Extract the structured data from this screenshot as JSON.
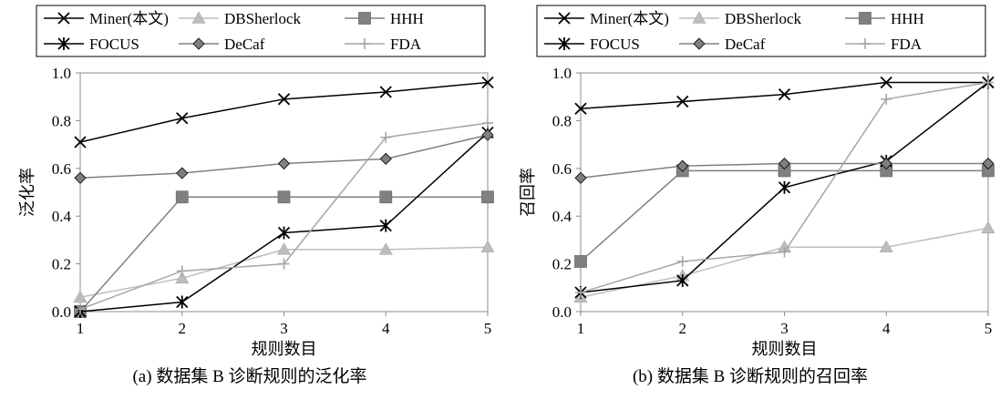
{
  "chart_data": [
    {
      "type": "line",
      "caption": "(a)  数据集 B 诊断规则的泛化率",
      "xlabel": "规则数目",
      "ylabel": "泛化率",
      "x": [
        1,
        2,
        3,
        4,
        5
      ],
      "xticks": [
        "1",
        "2",
        "3",
        "4",
        "5"
      ],
      "ylim": [
        0,
        1
      ],
      "yticks": [
        "0.0",
        "0.2",
        "0.4",
        "0.6",
        "0.8",
        "1.0"
      ],
      "legend": "top",
      "grid": false,
      "series": [
        {
          "name": "Miner(本文)",
          "marker": "x",
          "color": "#000000",
          "values": [
            0.71,
            0.81,
            0.89,
            0.92,
            0.96
          ]
        },
        {
          "name": "DBSherlock",
          "marker": "triangle",
          "color": "#bdbdbd",
          "values": [
            0.06,
            0.14,
            0.26,
            0.26,
            0.27
          ]
        },
        {
          "name": "HHH",
          "marker": "square",
          "color": "#808080",
          "values": [
            0.0,
            0.48,
            0.48,
            0.48,
            0.48
          ]
        },
        {
          "name": "FOCUS",
          "marker": "asterisk",
          "color": "#000000",
          "values": [
            0.0,
            0.04,
            0.33,
            0.36,
            0.75
          ]
        },
        {
          "name": "DeCaf",
          "marker": "diamond",
          "color": "#808080",
          "values": [
            0.56,
            0.58,
            0.62,
            0.64,
            0.74
          ]
        },
        {
          "name": "FDA",
          "marker": "plus",
          "color": "#a6a6a6",
          "values": [
            0.01,
            0.17,
            0.2,
            0.73,
            0.79
          ]
        }
      ]
    },
    {
      "type": "line",
      "caption": "(b)  数据集 B 诊断规则的召回率",
      "xlabel": "规则数目",
      "ylabel": "召回率",
      "x": [
        1,
        2,
        3,
        4,
        5
      ],
      "xticks": [
        "1",
        "2",
        "3",
        "4",
        "5"
      ],
      "ylim": [
        0,
        1
      ],
      "yticks": [
        "0.0",
        "0.2",
        "0.4",
        "0.6",
        "0.8",
        "1.0"
      ],
      "legend": "top",
      "grid": false,
      "series": [
        {
          "name": "Miner(本文)",
          "marker": "x",
          "color": "#000000",
          "values": [
            0.85,
            0.88,
            0.91,
            0.96,
            0.96
          ]
        },
        {
          "name": "DBSherlock",
          "marker": "triangle",
          "color": "#bdbdbd",
          "values": [
            0.06,
            0.15,
            0.27,
            0.27,
            0.35
          ]
        },
        {
          "name": "HHH",
          "marker": "square",
          "color": "#808080",
          "values": [
            0.21,
            0.59,
            0.59,
            0.59,
            0.59
          ]
        },
        {
          "name": "FOCUS",
          "marker": "asterisk",
          "color": "#000000",
          "values": [
            0.08,
            0.13,
            0.52,
            0.63,
            0.96
          ]
        },
        {
          "name": "DeCaf",
          "marker": "diamond",
          "color": "#808080",
          "values": [
            0.56,
            0.61,
            0.62,
            0.62,
            0.62
          ]
        },
        {
          "name": "FDA",
          "marker": "plus",
          "color": "#a6a6a6",
          "values": [
            0.08,
            0.21,
            0.25,
            0.89,
            0.96
          ]
        }
      ]
    }
  ]
}
